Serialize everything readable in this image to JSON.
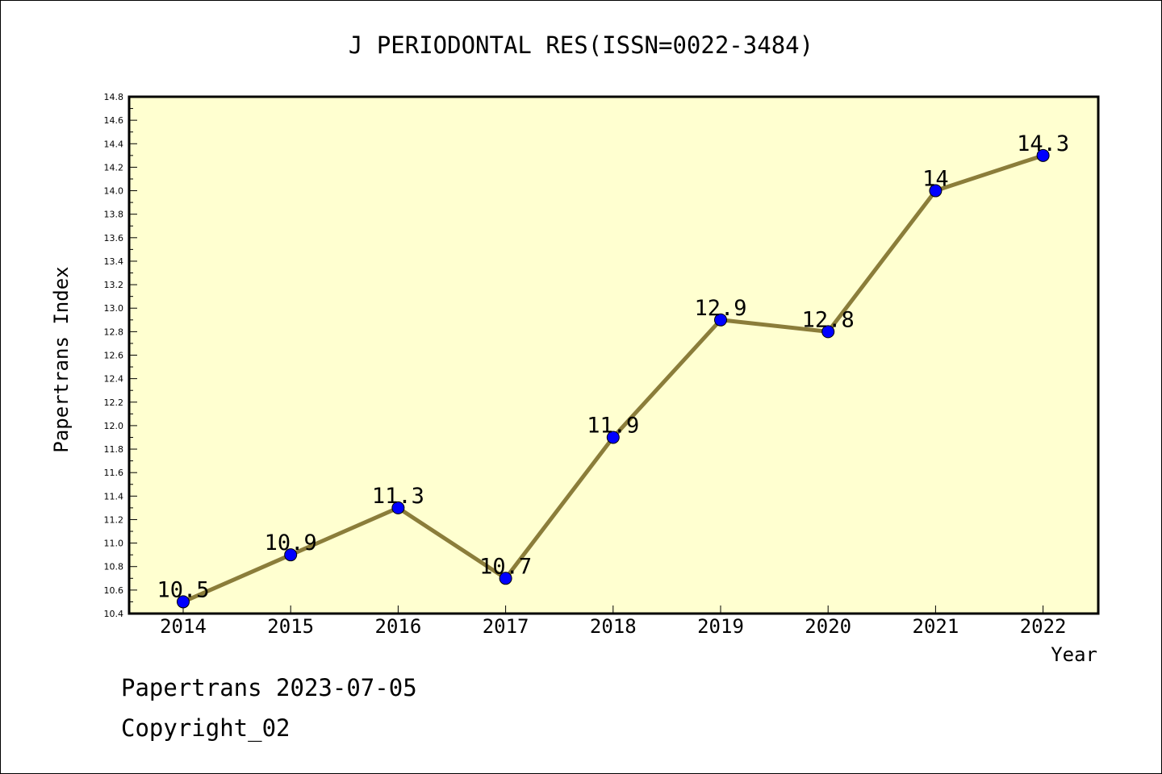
{
  "chart_data": {
    "type": "line",
    "title": "J PERIODONTAL RES(ISSN=0022-3484)",
    "xlabel": "Year",
    "ylabel": "Papertrans Index",
    "categories": [
      "2014",
      "2015",
      "2016",
      "2017",
      "2018",
      "2019",
      "2020",
      "2021",
      "2022"
    ],
    "values": [
      10.5,
      10.9,
      11.3,
      10.7,
      11.9,
      12.9,
      12.8,
      14.0,
      14.3
    ],
    "data_labels": [
      "10.5",
      "10.9",
      "11.3",
      "10.7",
      "11.9",
      "12.9",
      "12.8",
      "14",
      "14.3"
    ],
    "ylim": [
      10.4,
      14.8
    ],
    "yticks": [
      "10.4",
      "10.6",
      "10.8",
      "11.0",
      "11.2",
      "11.4",
      "11.6",
      "11.8",
      "12.0",
      "12.2",
      "12.4",
      "12.6",
      "12.8",
      "13.0",
      "13.2",
      "13.4",
      "13.6",
      "13.8",
      "14.0",
      "14.2",
      "14.4",
      "14.6",
      "14.8"
    ],
    "grid": false,
    "colors": {
      "plot_background": "#ffffd0",
      "line": "#8b7d3a",
      "marker": "#0000ff"
    }
  },
  "footer": {
    "line1": "Papertrans 2023-07-05",
    "line2": "Copyright_02"
  }
}
